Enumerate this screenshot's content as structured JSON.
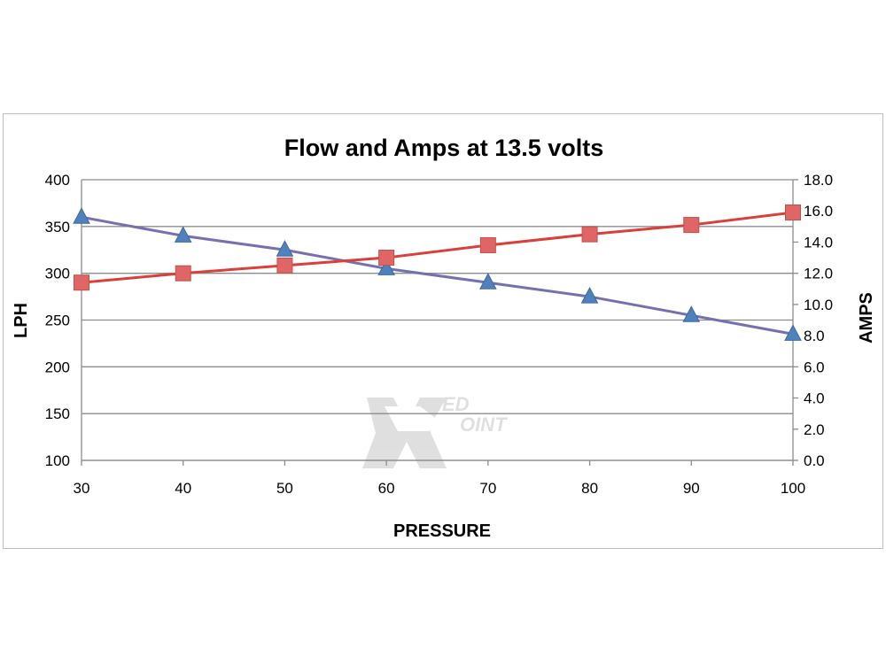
{
  "chart_data": {
    "type": "line",
    "title": "Flow and Amps at 13.5 volts",
    "xlabel": "PRESSURE",
    "ylabel": "LPH",
    "y2label": "AMPS",
    "x": [
      30,
      40,
      50,
      60,
      70,
      80,
      90,
      100
    ],
    "xlim": [
      30,
      100
    ],
    "ylim": [
      100,
      400
    ],
    "y2lim": [
      0,
      18
    ],
    "x_ticks": [
      "30",
      "40",
      "50",
      "60",
      "70",
      "80",
      "90",
      "100"
    ],
    "y_ticks": [
      "100",
      "150",
      "200",
      "250",
      "300",
      "350",
      "400"
    ],
    "y2_ticks": [
      "0.0",
      "2.0",
      "4.0",
      "6.0",
      "8.0",
      "10.0",
      "12.0",
      "14.0",
      "16.0",
      "18.0"
    ],
    "grid": true,
    "legend": "none",
    "series": [
      {
        "axis": "left",
        "marker": "triangle",
        "color": "#4f81bd",
        "line_color": "#7570b0",
        "values": [
          360,
          340,
          325,
          305,
          290,
          275,
          255,
          235
        ]
      },
      {
        "axis": "right",
        "marker": "square",
        "color": "#e06666",
        "line_color": "#d9403a",
        "values": [
          11.4,
          12.0,
          12.5,
          13.0,
          13.8,
          14.5,
          15.1,
          15.9
        ]
      }
    ],
    "watermark": "RedPoint"
  }
}
